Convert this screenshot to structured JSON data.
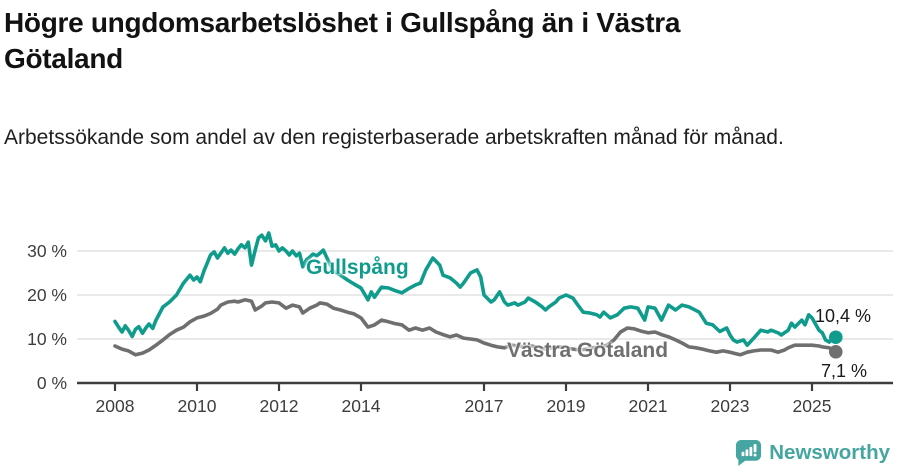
{
  "header": {
    "title": "Högre ungdomsarbetslöshet i Gullspång än i Västra Götaland",
    "subtitle": "Arbetssökande som andel av den registerbaserade arbetskraften månad för månad."
  },
  "chart_data": {
    "type": "line",
    "title": "Högre ungdomsarbetslöshet i Gullspång än i Västra Göt land",
    "xlabel": "",
    "ylabel": "",
    "xlim": [
      2007.6,
      2026.0
    ],
    "ylim": [
      0,
      36
    ],
    "grid": "horizontal",
    "legend_position": "inline-labels-on-lines",
    "colors": {
      "grid": "#dcdcdc",
      "axis": "#3d3d3d",
      "tick_text": "#3d3d3d",
      "value_text": "#1a1a1a"
    },
    "yticks": [
      {
        "value": 0,
        "label": "0 %"
      },
      {
        "value": 10,
        "label": "10 %"
      },
      {
        "value": 20,
        "label": "20 %"
      },
      {
        "value": 30,
        "label": "30 %"
      }
    ],
    "xticks": [
      {
        "value": 2008,
        "label": "2008"
      },
      {
        "value": 2010,
        "label": "2010"
      },
      {
        "value": 2012,
        "label": "2012"
      },
      {
        "value": 2014,
        "label": "2014"
      },
      {
        "value": 2017,
        "label": "2017"
      },
      {
        "value": 2019,
        "label": "2019"
      },
      {
        "value": 2021,
        "label": "2021"
      },
      {
        "value": 2023,
        "label": "2023"
      },
      {
        "value": 2025,
        "label": "2025"
      }
    ],
    "series": [
      {
        "name": "Gullspång",
        "color": "#109c8d",
        "end_label": "10,4 %",
        "end_value": 10.4,
        "points": [
          [
            2008.0,
            14.0
          ],
          [
            2008.08,
            12.8
          ],
          [
            2008.17,
            11.6
          ],
          [
            2008.25,
            13.0
          ],
          [
            2008.33,
            12.0
          ],
          [
            2008.42,
            10.6
          ],
          [
            2008.5,
            12.2
          ],
          [
            2008.58,
            12.8
          ],
          [
            2008.67,
            11.3
          ],
          [
            2008.75,
            12.5
          ],
          [
            2008.83,
            13.4
          ],
          [
            2008.92,
            12.4
          ],
          [
            2009.0,
            14.3
          ],
          [
            2009.17,
            17.3
          ],
          [
            2009.33,
            18.4
          ],
          [
            2009.5,
            20.0
          ],
          [
            2009.67,
            22.7
          ],
          [
            2009.83,
            24.5
          ],
          [
            2009.92,
            23.4
          ],
          [
            2010.0,
            24.1
          ],
          [
            2010.08,
            23.0
          ],
          [
            2010.17,
            25.5
          ],
          [
            2010.25,
            27.3
          ],
          [
            2010.33,
            29.1
          ],
          [
            2010.42,
            29.8
          ],
          [
            2010.5,
            28.4
          ],
          [
            2010.58,
            29.5
          ],
          [
            2010.67,
            30.7
          ],
          [
            2010.75,
            29.5
          ],
          [
            2010.83,
            30.2
          ],
          [
            2010.92,
            29.3
          ],
          [
            2011.0,
            30.5
          ],
          [
            2011.08,
            31.4
          ],
          [
            2011.17,
            30.7
          ],
          [
            2011.25,
            32.0
          ],
          [
            2011.33,
            26.8
          ],
          [
            2011.42,
            30.2
          ],
          [
            2011.5,
            33.0
          ],
          [
            2011.58,
            33.6
          ],
          [
            2011.67,
            32.3
          ],
          [
            2011.75,
            34.1
          ],
          [
            2011.83,
            31.1
          ],
          [
            2011.92,
            31.4
          ],
          [
            2012.0,
            30.0
          ],
          [
            2012.08,
            30.7
          ],
          [
            2012.17,
            30.0
          ],
          [
            2012.25,
            29.1
          ],
          [
            2012.33,
            30.0
          ],
          [
            2012.42,
            28.9
          ],
          [
            2012.5,
            29.5
          ],
          [
            2012.58,
            26.4
          ],
          [
            2012.67,
            28.0
          ],
          [
            2012.75,
            28.6
          ],
          [
            2012.83,
            29.3
          ],
          [
            2012.92,
            28.9
          ],
          [
            2013.0,
            29.5
          ],
          [
            2013.08,
            30.2
          ],
          [
            2013.17,
            28.4
          ],
          [
            2013.25,
            26.8
          ],
          [
            2013.33,
            25.5
          ],
          [
            2013.5,
            24.5
          ],
          [
            2013.67,
            23.4
          ],
          [
            2013.83,
            22.5
          ],
          [
            2014.0,
            21.6
          ],
          [
            2014.17,
            18.9
          ],
          [
            2014.25,
            20.7
          ],
          [
            2014.33,
            19.5
          ],
          [
            2014.5,
            21.8
          ],
          [
            2014.67,
            21.6
          ],
          [
            2014.83,
            21.0
          ],
          [
            2015.0,
            20.5
          ],
          [
            2015.17,
            21.5
          ],
          [
            2015.33,
            22.3
          ],
          [
            2015.45,
            22.7
          ],
          [
            2015.58,
            25.7
          ],
          [
            2015.75,
            28.4
          ],
          [
            2015.92,
            26.8
          ],
          [
            2016.0,
            24.5
          ],
          [
            2016.17,
            23.9
          ],
          [
            2016.33,
            22.7
          ],
          [
            2016.42,
            21.8
          ],
          [
            2016.5,
            22.7
          ],
          [
            2016.67,
            25.0
          ],
          [
            2016.83,
            25.7
          ],
          [
            2016.92,
            24.1
          ],
          [
            2017.0,
            20.0
          ],
          [
            2017.17,
            18.4
          ],
          [
            2017.25,
            18.9
          ],
          [
            2017.38,
            20.7
          ],
          [
            2017.5,
            18.4
          ],
          [
            2017.58,
            17.7
          ],
          [
            2017.75,
            18.2
          ],
          [
            2017.83,
            17.7
          ],
          [
            2018.0,
            18.4
          ],
          [
            2018.08,
            19.3
          ],
          [
            2018.25,
            18.4
          ],
          [
            2018.42,
            17.3
          ],
          [
            2018.5,
            16.6
          ],
          [
            2018.58,
            17.3
          ],
          [
            2018.75,
            18.4
          ],
          [
            2018.83,
            19.3
          ],
          [
            2019.0,
            20.0
          ],
          [
            2019.17,
            19.3
          ],
          [
            2019.25,
            18.2
          ],
          [
            2019.42,
            16.1
          ],
          [
            2019.58,
            15.9
          ],
          [
            2019.75,
            15.5
          ],
          [
            2019.83,
            15.0
          ],
          [
            2019.92,
            16.1
          ],
          [
            2020.08,
            14.8
          ],
          [
            2020.25,
            15.5
          ],
          [
            2020.42,
            17.0
          ],
          [
            2020.58,
            17.3
          ],
          [
            2020.75,
            17.0
          ],
          [
            2020.92,
            14.3
          ],
          [
            2021.0,
            17.3
          ],
          [
            2021.17,
            17.0
          ],
          [
            2021.33,
            14.3
          ],
          [
            2021.5,
            17.7
          ],
          [
            2021.67,
            16.6
          ],
          [
            2021.83,
            17.7
          ],
          [
            2022.0,
            17.3
          ],
          [
            2022.25,
            16.1
          ],
          [
            2022.42,
            13.6
          ],
          [
            2022.58,
            13.2
          ],
          [
            2022.75,
            11.7
          ],
          [
            2022.92,
            12.5
          ],
          [
            2023.0,
            10.9
          ],
          [
            2023.08,
            9.8
          ],
          [
            2023.17,
            9.3
          ],
          [
            2023.33,
            9.8
          ],
          [
            2023.42,
            8.6
          ],
          [
            2023.58,
            10.2
          ],
          [
            2023.75,
            12.0
          ],
          [
            2023.92,
            11.6
          ],
          [
            2024.0,
            12.0
          ],
          [
            2024.17,
            11.4
          ],
          [
            2024.25,
            10.9
          ],
          [
            2024.42,
            12.0
          ],
          [
            2024.5,
            13.6
          ],
          [
            2024.58,
            12.7
          ],
          [
            2024.75,
            14.3
          ],
          [
            2024.83,
            13.2
          ],
          [
            2024.92,
            15.5
          ],
          [
            2025.0,
            14.8
          ],
          [
            2025.17,
            12.0
          ],
          [
            2025.25,
            11.4
          ],
          [
            2025.33,
            9.8
          ],
          [
            2025.42,
            9.3
          ],
          [
            2025.5,
            10.2
          ],
          [
            2025.58,
            10.4
          ]
        ]
      },
      {
        "name": "Västra Götaland",
        "color": "#6f6f6f",
        "end_label": "7,1 %",
        "end_value": 7.1,
        "points": [
          [
            2008.0,
            8.4
          ],
          [
            2008.17,
            7.7
          ],
          [
            2008.33,
            7.3
          ],
          [
            2008.5,
            6.4
          ],
          [
            2008.67,
            6.8
          ],
          [
            2008.83,
            7.5
          ],
          [
            2009.0,
            8.6
          ],
          [
            2009.17,
            9.8
          ],
          [
            2009.33,
            11.0
          ],
          [
            2009.5,
            12.0
          ],
          [
            2009.67,
            12.7
          ],
          [
            2009.83,
            13.9
          ],
          [
            2010.0,
            14.8
          ],
          [
            2010.17,
            15.2
          ],
          [
            2010.33,
            15.8
          ],
          [
            2010.5,
            16.8
          ],
          [
            2010.58,
            17.7
          ],
          [
            2010.75,
            18.4
          ],
          [
            2010.92,
            18.6
          ],
          [
            2011.0,
            18.4
          ],
          [
            2011.17,
            18.9
          ],
          [
            2011.33,
            18.6
          ],
          [
            2011.42,
            16.6
          ],
          [
            2011.58,
            17.5
          ],
          [
            2011.67,
            18.2
          ],
          [
            2011.83,
            18.4
          ],
          [
            2012.0,
            18.2
          ],
          [
            2012.17,
            17.0
          ],
          [
            2012.33,
            17.7
          ],
          [
            2012.5,
            17.3
          ],
          [
            2012.58,
            15.9
          ],
          [
            2012.75,
            17.0
          ],
          [
            2012.92,
            17.7
          ],
          [
            2013.0,
            18.2
          ],
          [
            2013.17,
            17.9
          ],
          [
            2013.33,
            17.0
          ],
          [
            2013.5,
            16.6
          ],
          [
            2013.67,
            16.1
          ],
          [
            2013.83,
            15.7
          ],
          [
            2014.0,
            14.8
          ],
          [
            2014.17,
            12.7
          ],
          [
            2014.33,
            13.2
          ],
          [
            2014.5,
            14.3
          ],
          [
            2014.67,
            13.9
          ],
          [
            2014.83,
            13.5
          ],
          [
            2015.0,
            13.2
          ],
          [
            2015.17,
            12.0
          ],
          [
            2015.33,
            12.5
          ],
          [
            2015.5,
            12.0
          ],
          [
            2015.67,
            12.5
          ],
          [
            2015.83,
            11.6
          ],
          [
            2016.0,
            11.0
          ],
          [
            2016.17,
            10.5
          ],
          [
            2016.33,
            10.9
          ],
          [
            2016.5,
            10.2
          ],
          [
            2016.67,
            10.0
          ],
          [
            2016.83,
            9.8
          ],
          [
            2017.0,
            9.1
          ],
          [
            2017.17,
            8.6
          ],
          [
            2017.33,
            8.2
          ],
          [
            2017.5,
            8.0
          ],
          [
            2017.67,
            8.6
          ],
          [
            2017.83,
            8.4
          ],
          [
            2018.0,
            8.2
          ],
          [
            2018.17,
            8.4
          ],
          [
            2018.33,
            8.0
          ],
          [
            2018.5,
            7.7
          ],
          [
            2018.67,
            8.0
          ],
          [
            2018.83,
            8.2
          ],
          [
            2019.0,
            8.0
          ],
          [
            2019.17,
            7.7
          ],
          [
            2019.33,
            7.5
          ],
          [
            2019.5,
            7.7
          ],
          [
            2019.67,
            8.0
          ],
          [
            2019.83,
            8.2
          ],
          [
            2020.0,
            8.6
          ],
          [
            2020.17,
            9.8
          ],
          [
            2020.33,
            11.6
          ],
          [
            2020.5,
            12.5
          ],
          [
            2020.67,
            12.3
          ],
          [
            2020.83,
            11.8
          ],
          [
            2021.0,
            11.4
          ],
          [
            2021.17,
            11.6
          ],
          [
            2021.33,
            11.0
          ],
          [
            2021.5,
            10.5
          ],
          [
            2021.67,
            9.8
          ],
          [
            2021.83,
            9.1
          ],
          [
            2022.0,
            8.2
          ],
          [
            2022.17,
            8.0
          ],
          [
            2022.33,
            7.7
          ],
          [
            2022.5,
            7.3
          ],
          [
            2022.67,
            7.0
          ],
          [
            2022.83,
            7.3
          ],
          [
            2023.0,
            7.0
          ],
          [
            2023.17,
            6.6
          ],
          [
            2023.25,
            6.4
          ],
          [
            2023.42,
            7.0
          ],
          [
            2023.58,
            7.3
          ],
          [
            2023.75,
            7.5
          ],
          [
            2023.92,
            7.5
          ],
          [
            2024.0,
            7.5
          ],
          [
            2024.17,
            7.0
          ],
          [
            2024.33,
            7.5
          ],
          [
            2024.42,
            8.0
          ],
          [
            2024.58,
            8.6
          ],
          [
            2024.75,
            8.6
          ],
          [
            2024.92,
            8.6
          ],
          [
            2025.0,
            8.6
          ],
          [
            2025.17,
            8.4
          ],
          [
            2025.25,
            8.2
          ],
          [
            2025.42,
            8.0
          ],
          [
            2025.58,
            7.1
          ]
        ]
      }
    ]
  },
  "footer": {
    "brand": "Newsworthy",
    "brand_color": "#45a5a0",
    "logo_icon": "bar-chart-speech-bubble-icon"
  }
}
